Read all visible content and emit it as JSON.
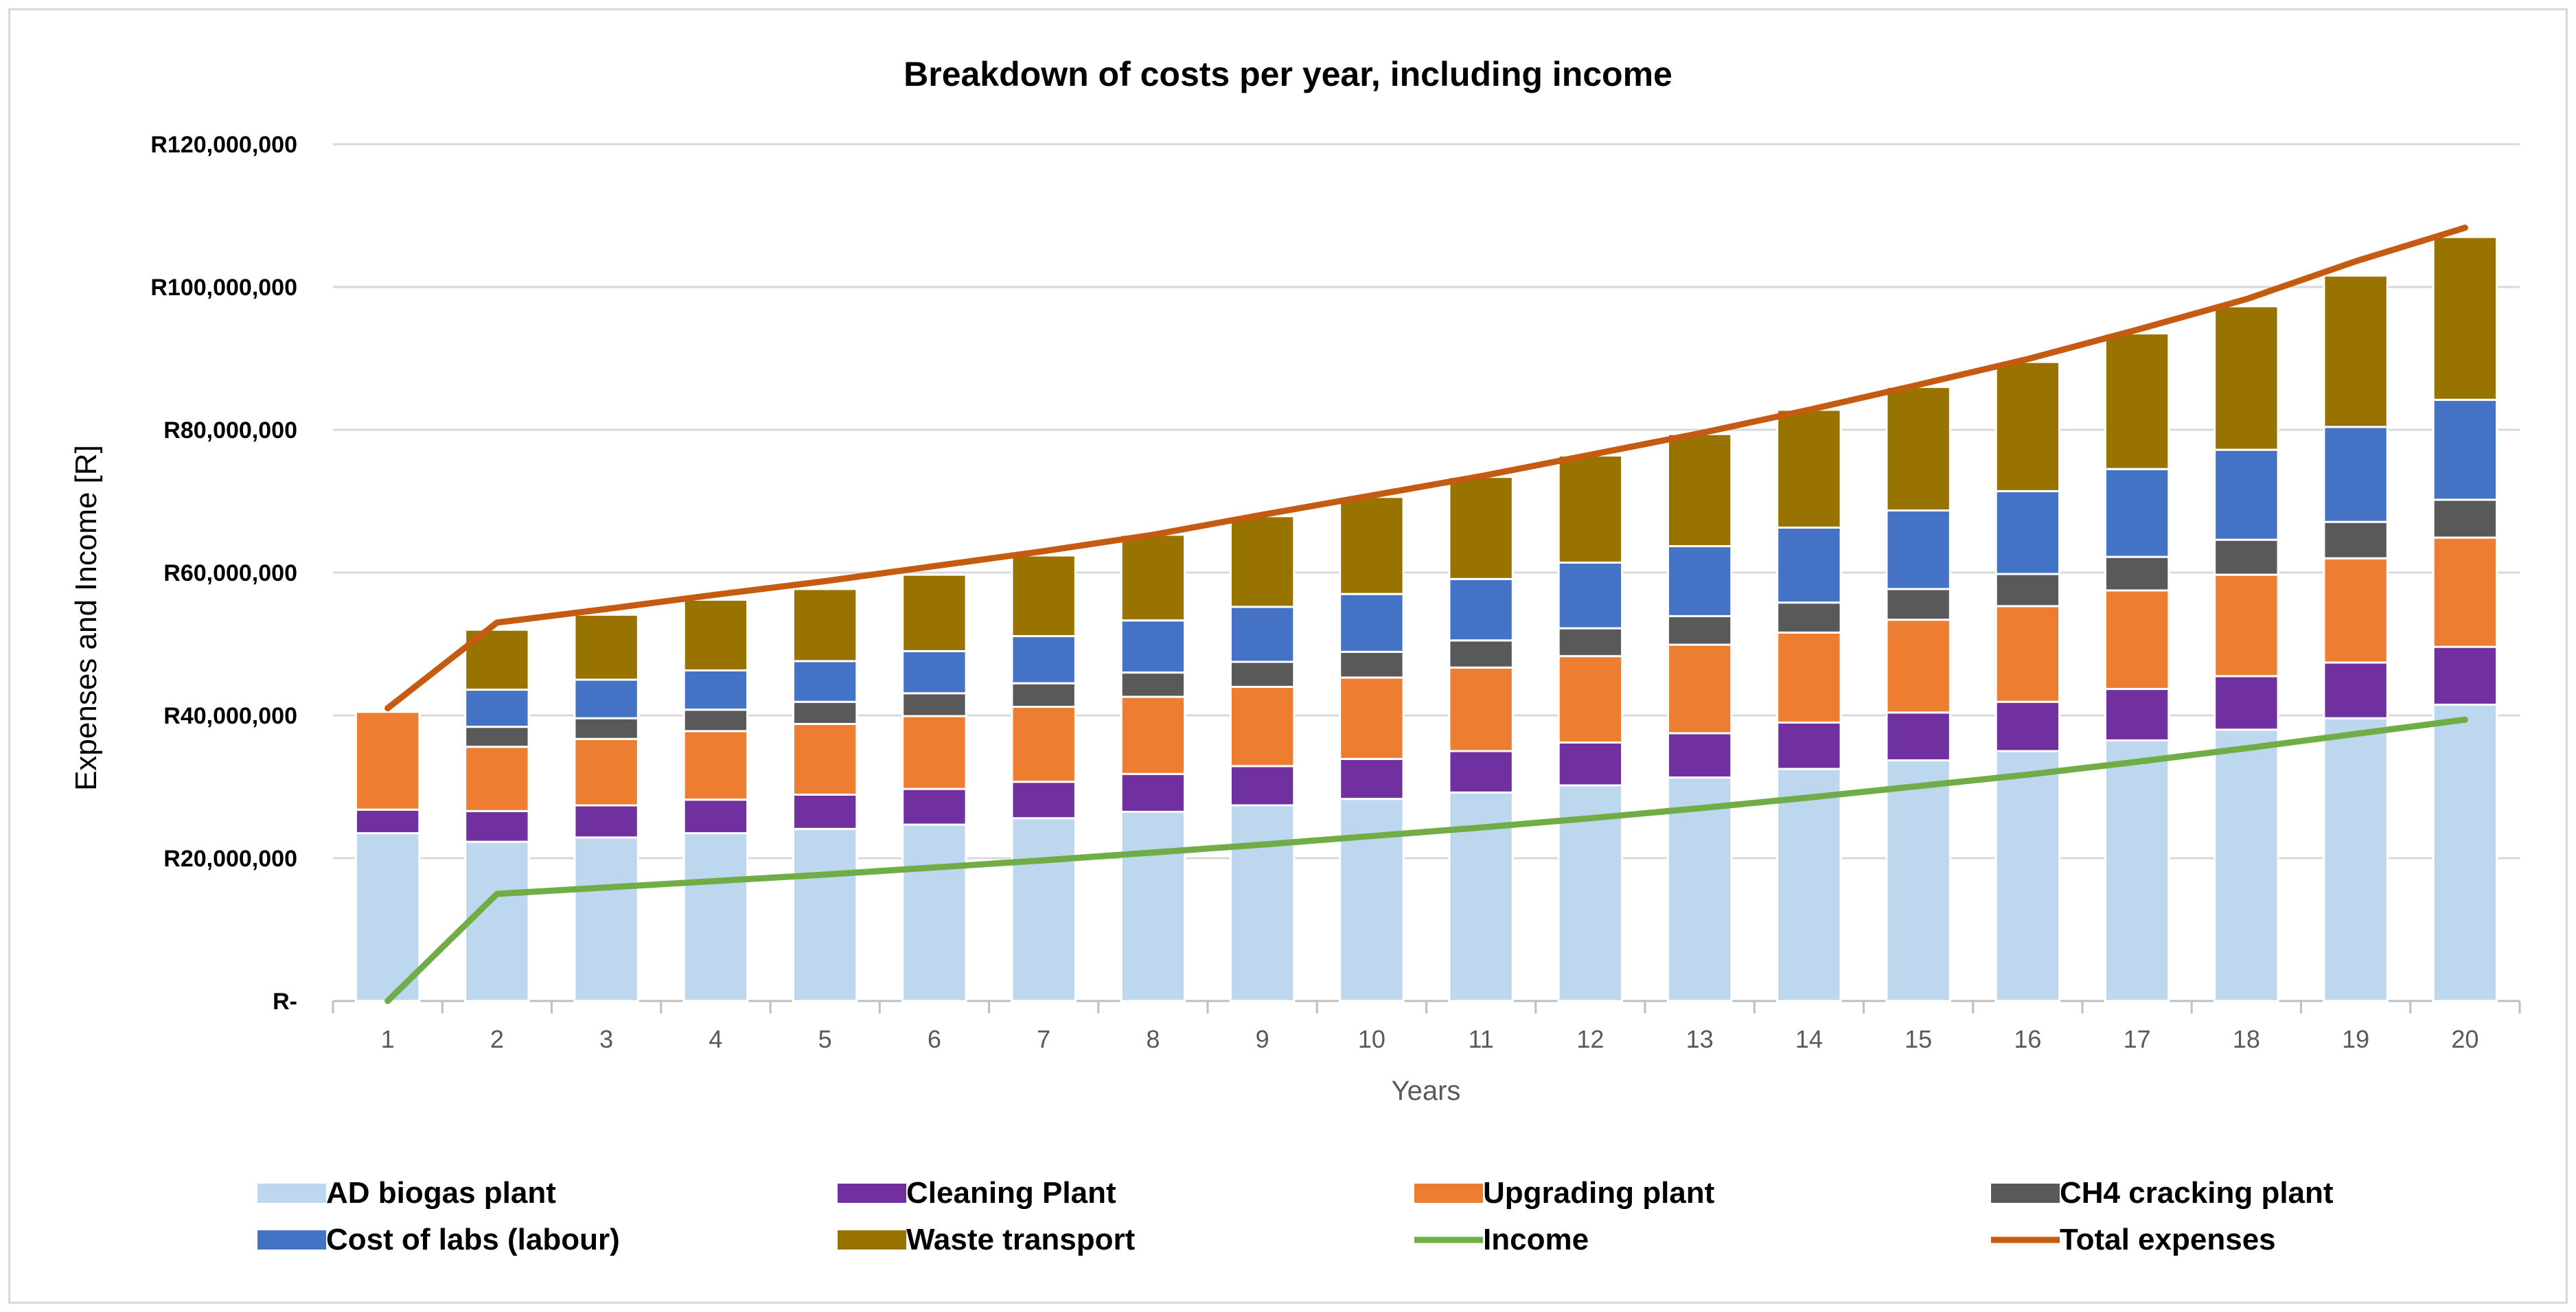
{
  "chart_data": {
    "type": "bar",
    "stacked": true,
    "title": "Breakdown of costs per year, including income",
    "xlabel": "Years",
    "ylabel": "Expenses and Income [R]",
    "ylim": [
      0,
      120000000
    ],
    "yticks": [
      0,
      20000000,
      40000000,
      60000000,
      80000000,
      100000000,
      120000000
    ],
    "ytick_labels": [
      "R-",
      "R20,000,000",
      "R40,000,000",
      "R60,000,000",
      "R80,000,000",
      "R100,000,000",
      "R120,000,000"
    ],
    "categories": [
      "1",
      "2",
      "3",
      "4",
      "5",
      "6",
      "7",
      "8",
      "9",
      "10",
      "11",
      "12",
      "13",
      "14",
      "15",
      "16",
      "17",
      "18",
      "19",
      "20"
    ],
    "grid": true,
    "legend_position": "bottom",
    "series": [
      {
        "name": "AD biogas plant",
        "kind": "bar",
        "color": "#BDD7EE",
        "values": [
          23500000,
          22300000,
          22900000,
          23500000,
          24100000,
          24700000,
          25600000,
          26500000,
          27400000,
          28300000,
          29200000,
          30200000,
          31300000,
          32500000,
          33700000,
          35000000,
          36500000,
          38000000,
          39600000,
          41500000
        ]
      },
      {
        "name": "Cleaning Plant",
        "kind": "bar",
        "color": "#7030A0",
        "values": [
          3300000,
          4300000,
          4500000,
          4700000,
          4800000,
          5000000,
          5100000,
          5300000,
          5500000,
          5600000,
          5800000,
          6000000,
          6200000,
          6500000,
          6700000,
          6900000,
          7200000,
          7500000,
          7800000,
          8100000
        ]
      },
      {
        "name": "Upgrading plant",
        "kind": "bar",
        "color": "#ED7D31",
        "values": [
          13700000,
          9000000,
          9300000,
          9600000,
          9900000,
          10200000,
          10500000,
          10800000,
          11100000,
          11400000,
          11700000,
          12100000,
          12400000,
          12600000,
          13000000,
          13400000,
          13800000,
          14200000,
          14600000,
          15300000
        ]
      },
      {
        "name": "CH4 cracking plant",
        "kind": "bar",
        "color": "#595959",
        "values": [
          0,
          2800000,
          2900000,
          3000000,
          3100000,
          3200000,
          3300000,
          3400000,
          3500000,
          3600000,
          3800000,
          3900000,
          4000000,
          4200000,
          4300000,
          4500000,
          4700000,
          4900000,
          5100000,
          5300000
        ]
      },
      {
        "name": "Cost of labs (labour)",
        "kind": "bar",
        "color": "#4472C4",
        "values": [
          0,
          5200000,
          5400000,
          5500000,
          5700000,
          5900000,
          6600000,
          7300000,
          7700000,
          8100000,
          8600000,
          9200000,
          9800000,
          10500000,
          11000000,
          11600000,
          12300000,
          12600000,
          13300000,
          14000000
        ]
      },
      {
        "name": "Waste transport",
        "kind": "bar",
        "color": "#997300",
        "values": [
          0,
          8400000,
          9100000,
          9900000,
          10100000,
          10700000,
          11300000,
          12000000,
          12700000,
          13600000,
          14300000,
          15000000,
          15700000,
          16500000,
          17300000,
          18100000,
          19000000,
          20100000,
          21200000,
          22800000
        ]
      },
      {
        "name": "Income",
        "kind": "line",
        "color": "#70AD47",
        "values": [
          0,
          15000000,
          15900000,
          16800000,
          17700000,
          18700000,
          19700000,
          20800000,
          21900000,
          23100000,
          24300000,
          25600000,
          27000000,
          28500000,
          30100000,
          31700000,
          33500000,
          35400000,
          37400000,
          39400000
        ]
      },
      {
        "name": "Total expenses",
        "kind": "line",
        "color": "#C55A11",
        "values": [
          41000000,
          53000000,
          54900000,
          56900000,
          58800000,
          60900000,
          63000000,
          65300000,
          68100000,
          70800000,
          73500000,
          76500000,
          79500000,
          82800000,
          86300000,
          89900000,
          94000000,
          98300000,
          103600000,
          108300000
        ]
      }
    ]
  }
}
